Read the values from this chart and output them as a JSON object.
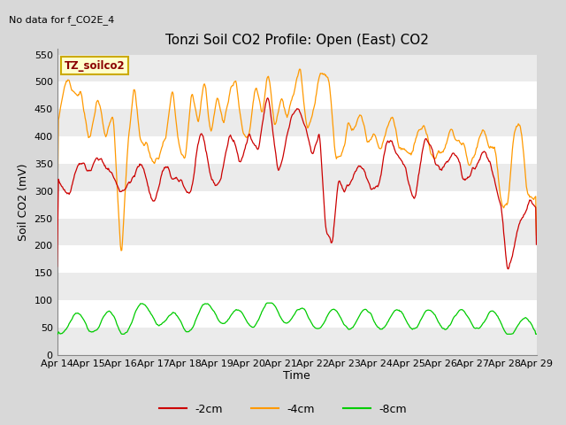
{
  "title": "Tonzi Soil CO2 Profile: Open (East) CO2",
  "top_left_text": "No data for f_CO2E_4",
  "ylabel": "Soil CO2 (mV)",
  "xlabel": "Time",
  "legend_box_label": "TZ_soilco2",
  "ylim": [
    0,
    560
  ],
  "yticks": [
    0,
    50,
    100,
    150,
    200,
    250,
    300,
    350,
    400,
    450,
    500,
    550
  ],
  "xtick_labels": [
    "Apr 14",
    "Apr 15",
    "Apr 16",
    "Apr 17",
    "Apr 18",
    "Apr 19",
    "Apr 20",
    "Apr 21",
    "Apr 22",
    "Apr 23",
    "Apr 24",
    "Apr 25",
    "Apr 26",
    "Apr 27",
    "Apr 28",
    "Apr 29"
  ],
  "line_colors": {
    "m2cm": "#cc0000",
    "m4cm": "#ff9900",
    "m8cm": "#00cc00"
  },
  "legend_labels": [
    "-2cm",
    "-4cm",
    "-8cm"
  ],
  "bg_color": "#d8d8d8",
  "stripe_color": "#ebebeb",
  "white_stripe": "#ffffff",
  "title_fontsize": 11,
  "axis_label_fontsize": 9,
  "tick_fontsize": 8,
  "legend_box_color": "#ffffcc",
  "legend_box_edge": "#ccaa00"
}
